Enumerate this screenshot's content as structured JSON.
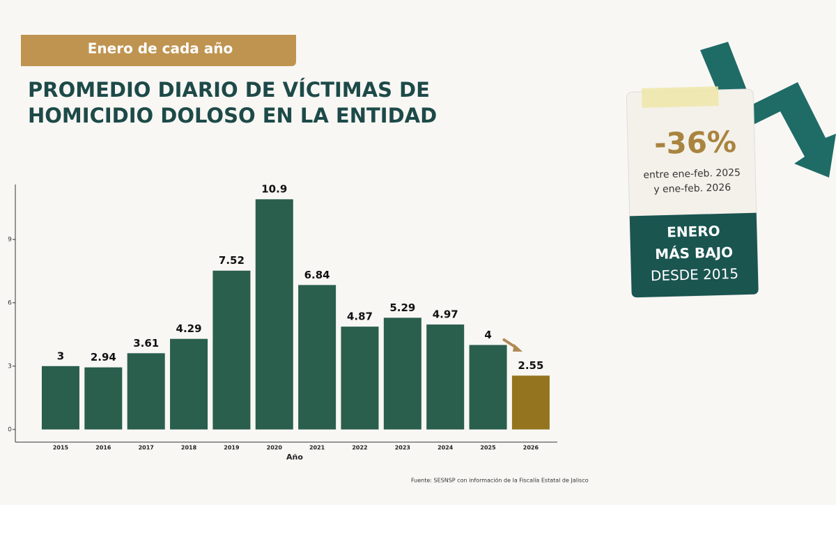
{
  "tag": "Enero de cada año",
  "title_lines": [
    "PROMEDIO DIARIO DE VÍCTIMAS DE",
    "HOMICIDIO DOLOSO EN LA ENTIDAD"
  ],
  "callout": {
    "change": "-36%",
    "lines": [
      "entre ene-feb. 2025",
      "y ene-feb. 2026"
    ],
    "badge": [
      "ENERO",
      "MÁS BAJO",
      "DESDE 2015"
    ]
  },
  "source": "Fuente: SESNSP con información de la Fiscalía Estatal de Jalisco",
  "chart_data": {
    "type": "bar",
    "x_label": "Año",
    "categories": [
      "2015",
      "2016",
      "2017",
      "2018",
      "2019",
      "2020",
      "2021",
      "2022",
      "2023",
      "2024",
      "2025",
      "2026"
    ],
    "values": [
      3,
      2.94,
      3.61,
      4.29,
      7.52,
      10.9,
      6.84,
      4.87,
      5.29,
      4.97,
      4,
      2.55
    ],
    "colors": [
      "#2a5e4d",
      "#2a5e4d",
      "#2a5e4d",
      "#2a5e4d",
      "#2a5e4d",
      "#2a5e4d",
      "#2a5e4d",
      "#2a5e4d",
      "#2a5e4d",
      "#2a5e4d",
      "#2a5e4d",
      "#94741f"
    ],
    "ylim": [
      -0.6,
      11.6
    ],
    "yticks": [
      0,
      3,
      6,
      9
    ],
    "grid": false
  }
}
